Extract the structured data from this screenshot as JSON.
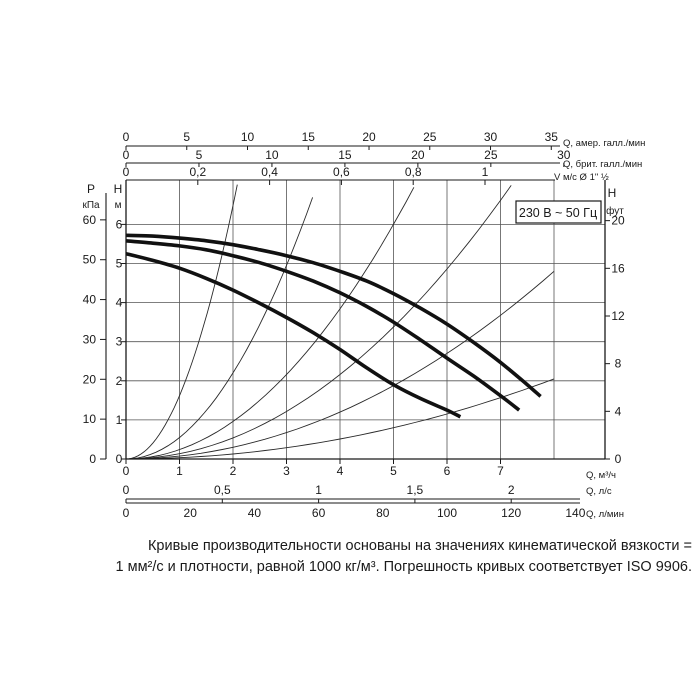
{
  "chart_data": {
    "type": "line",
    "title": "",
    "voltage_label": "230 В ~ 50 Гц",
    "grid": true,
    "legend": "none",
    "left_axes": [
      {
        "label": "P",
        "unit": "кПа",
        "range": [
          0,
          60
        ],
        "ticks": [
          "0",
          "10",
          "20",
          "30",
          "40",
          "50",
          "60"
        ]
      },
      {
        "label": "H",
        "unit": "м",
        "range": [
          0,
          6
        ],
        "ticks": [
          "0",
          "1",
          "2",
          "3",
          "4",
          "5",
          "6"
        ]
      }
    ],
    "right_axis": {
      "label": "H",
      "unit": "фут",
      "range": [
        0,
        20
      ],
      "ticks": [
        "0",
        "4",
        "8",
        "12",
        "16",
        "20"
      ]
    },
    "top_axes": [
      {
        "label": "Q, амер. галл./мин",
        "max": 35,
        "ticks": [
          "0",
          "5",
          "10",
          "15",
          "20",
          "25",
          "30",
          "35"
        ]
      },
      {
        "label": "Q, брит. галл./мин",
        "max": 30,
        "ticks": [
          "0",
          "5",
          "10",
          "15",
          "20",
          "25",
          "30"
        ]
      },
      {
        "label": "V м/с Ø 1\" ½",
        "ticks": [
          "0",
          "0,2",
          "0,4",
          "0,6",
          "0,8",
          "1"
        ]
      }
    ],
    "bottom_axes": [
      {
        "label": "Q, м³/ч",
        "range": [
          0,
          8
        ],
        "ticks": [
          "0",
          "1",
          "2",
          "3",
          "4",
          "5",
          "6",
          "7"
        ]
      },
      {
        "label": "Q, л/с",
        "ticks": [
          "0",
          "0,5",
          "1",
          "1,5",
          "2"
        ]
      },
      {
        "label": "Q, л/мин",
        "ticks": [
          "0",
          "20",
          "40",
          "60",
          "80",
          "100",
          "120",
          "140"
        ]
      }
    ],
    "series": [
      {
        "x": [
          0.0,
          0.5,
          1.0,
          1.5,
          2.0,
          2.5,
          3.0,
          3.5,
          4.0,
          4.5,
          5.0,
          5.5,
          6.0,
          6.5,
          7.0,
          7.5,
          7.75
        ],
        "y": [
          5.72,
          5.7,
          5.65,
          5.58,
          5.48,
          5.35,
          5.2,
          5.02,
          4.8,
          4.55,
          4.23,
          3.86,
          3.45,
          2.98,
          2.47,
          1.9,
          1.6
        ]
      },
      {
        "x": [
          0.0,
          0.5,
          1.0,
          1.5,
          2.0,
          2.5,
          3.0,
          3.5,
          4.0,
          4.5,
          5.0,
          5.5,
          6.0,
          6.5,
          7.0,
          7.35
        ],
        "y": [
          5.58,
          5.52,
          5.45,
          5.35,
          5.2,
          5.02,
          4.8,
          4.55,
          4.25,
          3.9,
          3.5,
          3.05,
          2.58,
          2.12,
          1.62,
          1.25
        ]
      },
      {
        "x": [
          0.0,
          0.5,
          1.0,
          1.5,
          2.0,
          2.5,
          3.0,
          3.5,
          4.0,
          4.5,
          5.0,
          5.5,
          6.0,
          6.25
        ],
        "y": [
          5.25,
          5.08,
          4.88,
          4.62,
          4.32,
          3.98,
          3.62,
          3.23,
          2.8,
          2.33,
          1.9,
          1.55,
          1.25,
          1.08
        ]
      }
    ],
    "system_curves": [
      {
        "k": 1.62,
        "x_end": 2.25
      },
      {
        "k": 0.55,
        "x_end": 4.5
      },
      {
        "k": 0.24,
        "x_end": 6.15
      },
      {
        "k": 0.135,
        "x_end": 8.0
      },
      {
        "k": 0.075,
        "x_end": 8.0
      },
      {
        "k": 0.032,
        "x_end": 8.0
      }
    ]
  },
  "caption": {
    "line1": "Кривые производительности основаны на значениях кинематической вязкости =",
    "line2": "1 мм²/с и плотности, равной 1000 кг/м³. Погрешность кривых соответствует ISO 9906."
  }
}
